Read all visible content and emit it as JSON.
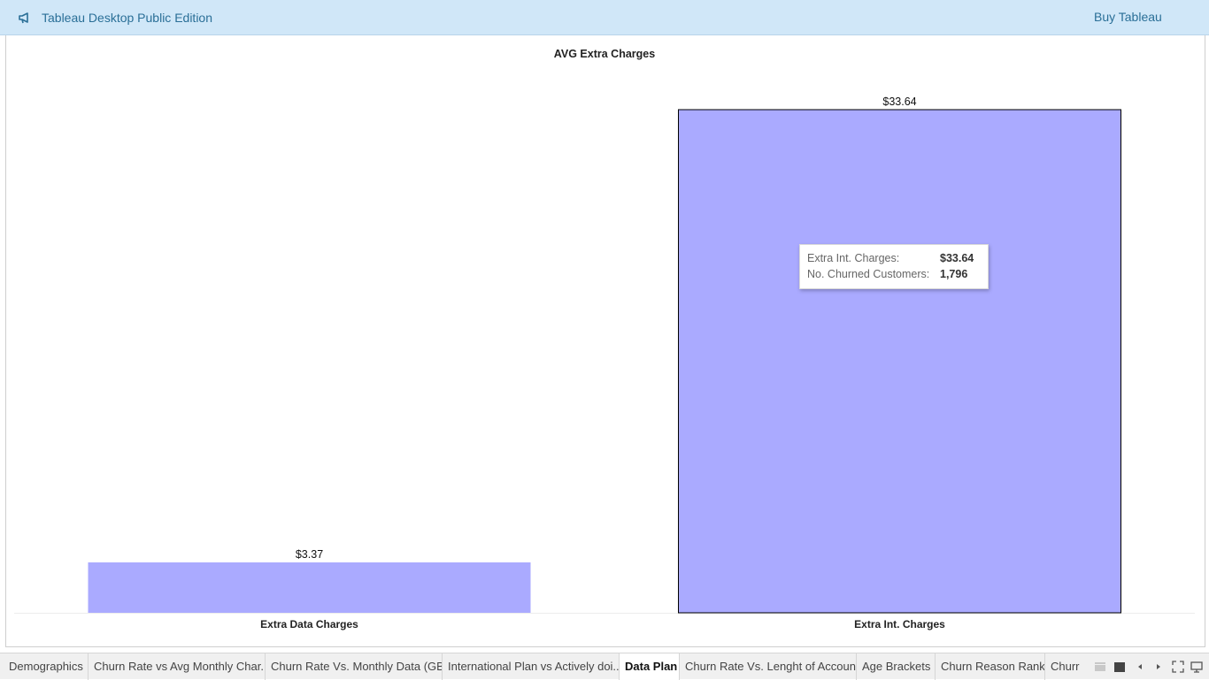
{
  "app": {
    "title": "Tableau Desktop Public Edition",
    "buy_label": "Buy Tableau",
    "accent": "#2a6f97",
    "topbar_bg": "#d0e7f8"
  },
  "chart_data": {
    "type": "bar",
    "title": "AVG Extra Charges",
    "categories": [
      "Extra Data Charges",
      "Extra Int. Charges"
    ],
    "values": [
      3.37,
      33.64
    ],
    "value_labels": [
      "$3.37",
      "$33.64"
    ],
    "bar_color": "#aaaaff",
    "highlighted": "Extra Int. Charges",
    "xlabel": "",
    "ylabel": "",
    "ylim": [
      0,
      33.64
    ],
    "grid": false
  },
  "tooltip": {
    "rows": [
      {
        "label": "Extra Int. Charges:",
        "value": "$33.64"
      },
      {
        "label": "No. Churned Customers:",
        "value": "1,796"
      }
    ]
  },
  "tabs": [
    {
      "label": "Demographics",
      "active": false
    },
    {
      "label": "Churn Rate vs Avg Monthly Char...",
      "active": false
    },
    {
      "label": "Churn Rate Vs. Monthly Data (GB)",
      "active": false
    },
    {
      "label": "International Plan vs Actively doi...",
      "active": false
    },
    {
      "label": "Data Plan",
      "active": true
    },
    {
      "label": "Churn Rate Vs. Lenght of Account",
      "active": false
    },
    {
      "label": "Age Brackets",
      "active": false
    },
    {
      "label": "Churn Reason Rank",
      "active": false
    },
    {
      "label": "Churr",
      "active": false
    }
  ],
  "tab_controls": [
    "filmstrip-icon",
    "grid-view-icon",
    "prev-sheet-icon",
    "next-sheet-icon",
    "fullscreen-icon",
    "present-icon"
  ]
}
